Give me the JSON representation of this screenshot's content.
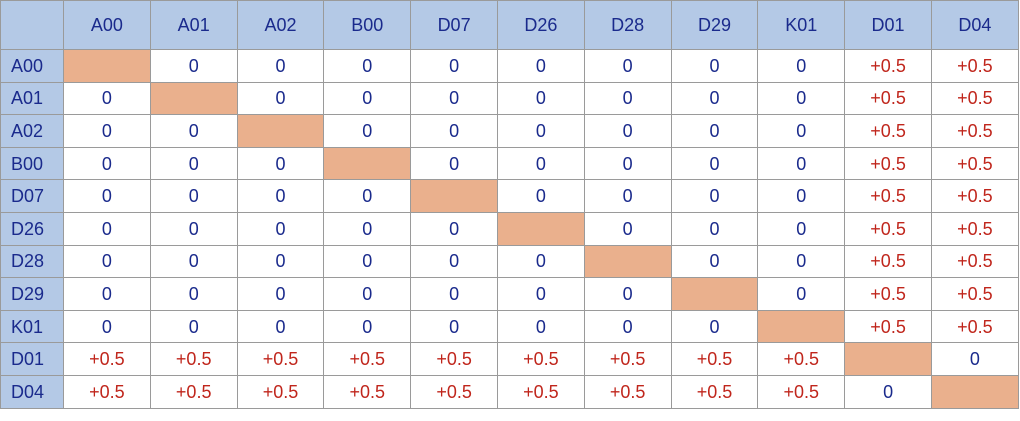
{
  "colors": {
    "header_bg": "#b4c9e6",
    "header_text": "#1a2a8c",
    "zero_text": "#1a2a8c",
    "plus_text": "#c0261c",
    "diagonal_fill": "#eab08d",
    "grid_line": "#9a9a9a"
  },
  "columns": [
    "A00",
    "A01",
    "A02",
    "B00",
    "D07",
    "D26",
    "D28",
    "D29",
    "K01",
    "D01",
    "D04"
  ],
  "rows": [
    {
      "label": "A00",
      "cells": [
        null,
        "0",
        "0",
        "0",
        "0",
        "0",
        "0",
        "0",
        "0",
        "+0.5",
        "+0.5"
      ]
    },
    {
      "label": "A01",
      "cells": [
        "0",
        null,
        "0",
        "0",
        "0",
        "0",
        "0",
        "0",
        "0",
        "+0.5",
        "+0.5"
      ]
    },
    {
      "label": "A02",
      "cells": [
        "0",
        "0",
        null,
        "0",
        "0",
        "0",
        "0",
        "0",
        "0",
        "+0.5",
        "+0.5"
      ]
    },
    {
      "label": "B00",
      "cells": [
        "0",
        "0",
        "0",
        null,
        "0",
        "0",
        "0",
        "0",
        "0",
        "+0.5",
        "+0.5"
      ]
    },
    {
      "label": "D07",
      "cells": [
        "0",
        "0",
        "0",
        "0",
        null,
        "0",
        "0",
        "0",
        "0",
        "+0.5",
        "+0.5"
      ]
    },
    {
      "label": "D26",
      "cells": [
        "0",
        "0",
        "0",
        "0",
        "0",
        null,
        "0",
        "0",
        "0",
        "+0.5",
        "+0.5"
      ]
    },
    {
      "label": "D28",
      "cells": [
        "0",
        "0",
        "0",
        "0",
        "0",
        "0",
        null,
        "0",
        "0",
        "+0.5",
        "+0.5"
      ]
    },
    {
      "label": "D29",
      "cells": [
        "0",
        "0",
        "0",
        "0",
        "0",
        "0",
        "0",
        null,
        "0",
        "+0.5",
        "+0.5"
      ]
    },
    {
      "label": "K01",
      "cells": [
        "0",
        "0",
        "0",
        "0",
        "0",
        "0",
        "0",
        "0",
        null,
        "+0.5",
        "+0.5"
      ]
    },
    {
      "label": "D01",
      "cells": [
        "+0.5",
        "+0.5",
        "+0.5",
        "+0.5",
        "+0.5",
        "+0.5",
        "+0.5",
        "+0.5",
        "+0.5",
        null,
        "0"
      ]
    },
    {
      "label": "D04",
      "cells": [
        "+0.5",
        "+0.5",
        "+0.5",
        "+0.5",
        "+0.5",
        "+0.5",
        "+0.5",
        "+0.5",
        "+0.5",
        "0",
        null
      ]
    }
  ]
}
